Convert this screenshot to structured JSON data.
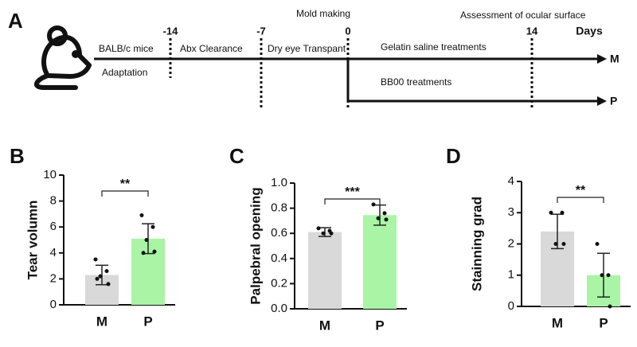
{
  "panels": [
    "A",
    "B",
    "C",
    "D"
  ],
  "timeline": {
    "ticks": [
      -14,
      -7,
      0,
      14
    ],
    "unit": "Days",
    "top_labels": [
      "Mold making",
      "Assessment of ocular surface"
    ],
    "phases": [
      "BALB/c mice",
      "Adaptation",
      "Abx  Clearance",
      "Dry eye Transpant",
      "Gelatin saline treatments",
      "BB00 treatments"
    ],
    "groups": [
      "M",
      "P"
    ]
  },
  "chart_data": [
    {
      "type": "bar",
      "ylabel": "Tear volumn",
      "categories": [
        "M",
        "P"
      ],
      "values": [
        2.3,
        5.1
      ],
      "errors": [
        0.75,
        1.15
      ],
      "points": [
        [
          3.5,
          2.6,
          2.2,
          1.6,
          2.0
        ],
        [
          6.9,
          6.0,
          5.0,
          4.1,
          4.0
        ]
      ],
      "colors": [
        "#d9d9d9",
        "#a9f5a5"
      ],
      "ylim": [
        0,
        10
      ],
      "yticks": [
        0,
        2,
        4,
        6,
        8,
        10
      ],
      "significance": "**"
    },
    {
      "type": "bar",
      "ylabel": "Palpebral opening",
      "categories": [
        "M",
        "P"
      ],
      "values": [
        0.61,
        0.745
      ],
      "errors": [
        0.035,
        0.08
      ],
      "points": [
        [
          0.64,
          0.62,
          0.6,
          0.6
        ],
        [
          0.83,
          0.76,
          0.72,
          0.71
        ]
      ],
      "colors": [
        "#d9d9d9",
        "#a9f5a5"
      ],
      "ylim": [
        0,
        1
      ],
      "yticks": [
        {
          "value": 0,
          "label": "0.0"
        },
        0.2,
        0.4,
        0.6,
        0.8,
        {
          "value": 1,
          "label": "1.0"
        }
      ],
      "significance": "***"
    },
    {
      "type": "bar",
      "ylabel": "Stainning grad",
      "categories": [
        "M",
        "P"
      ],
      "values": [
        2.4,
        1.0
      ],
      "errors": [
        0.55,
        0.7
      ],
      "points": [
        [
          3,
          3,
          2,
          2
        ],
        [
          2,
          1,
          1,
          0
        ]
      ],
      "colors": [
        "#d9d9d9",
        "#a9f5a5"
      ],
      "ylim": [
        0,
        4
      ],
      "yticks": [
        0,
        1,
        2,
        3,
        4
      ],
      "significance": "**"
    }
  ]
}
